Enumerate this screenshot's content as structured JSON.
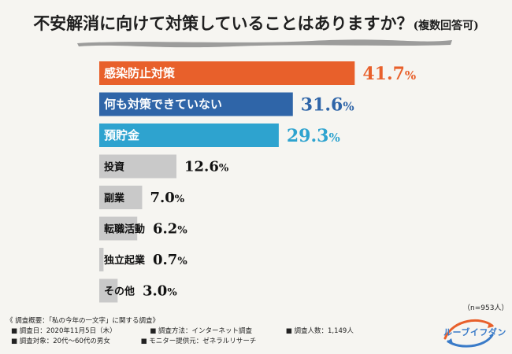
{
  "title": "不安解消に向けて対策していることはありますか？",
  "title_sub": "(複数回答可)",
  "n_label": "（n=953人）",
  "colors": {
    "primary": "#e8602b",
    "secondary": "#2f65a8",
    "tertiary": "#2ea3cf",
    "gray": "#c9c9c9"
  },
  "chart_data": {
    "type": "bar",
    "orientation": "horizontal",
    "categories": [
      "感染防止対策",
      "何も対策できていない",
      "預貯金",
      "投資",
      "副業",
      "転職活動",
      "独立起業",
      "その他"
    ],
    "values": [
      41.7,
      31.6,
      29.3,
      12.6,
      7.0,
      6.2,
      0.7,
      3.0
    ],
    "value_labels": [
      "41.7%",
      "31.6%",
      "29.3%",
      "12.6%",
      "7.0%",
      "6.2%",
      "0.7%",
      "3.0%"
    ],
    "unit": "%",
    "xlim": [
      0,
      45
    ],
    "grid": false
  },
  "survey": {
    "heading": "《 調査概要：「私の今年の一文字」に関する調査》",
    "date": "■ 調査日：2020年11月5日（木）",
    "method": "■ 調査方法：インターネット調査",
    "count": "■ 調査人数：1,149人",
    "target": "■ 調査対象：20代〜60代の男女",
    "provider": "■ モニター提供元：ゼネラルリサーチ"
  },
  "logo_text": "ルーブイフダン"
}
